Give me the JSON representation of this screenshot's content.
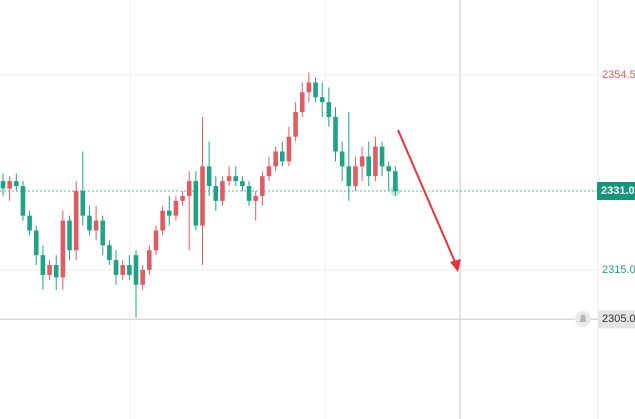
{
  "chart_data": {
    "type": "candlestick",
    "up_color": "#e15b64",
    "down_color": "#1fa385",
    "ylim": [
      2284.8,
      2369.7
    ],
    "yticks": [
      2354.5,
      {
        "value": 2315,
        "label": "2315.0"
      }
    ],
    "last_price": {
      "value": 2331,
      "label": "2331.0"
    },
    "crosshair": {
      "value": 2305,
      "label": "2305.0"
    },
    "grid": true,
    "series": {
      "open": [
        2333,
        2331.5,
        2333,
        2332,
        2326,
        2323,
        2318,
        2314,
        2316,
        2313.5,
        2325,
        2319,
        2331,
        2326,
        2323,
        2325,
        2320,
        2317,
        2314,
        2316,
        2318,
        2312,
        2315,
        2319,
        2323,
        2327,
        2326,
        2329,
        2330,
        2333,
        2324,
        2336,
        2332,
        2329,
        2333,
        2334,
        2333,
        2332,
        2329,
        2330,
        2334,
        2336,
        2339,
        2337,
        2342,
        2347,
        2351,
        2353,
        2350,
        2349,
        2346,
        2339,
        2336,
        2332,
        2336,
        2338,
        2334,
        2340,
        2336,
        2335
      ],
      "high": [
        2334.5,
        2334,
        2334.5,
        2333,
        2327,
        2324,
        2320,
        2317,
        2318,
        2327,
        2326,
        2333,
        2339,
        2328,
        2328,
        2326,
        2321,
        2319,
        2317,
        2318,
        2319,
        2316,
        2320,
        2324,
        2328,
        2330,
        2330,
        2331,
        2335,
        2335,
        2346,
        2341,
        2334,
        2334,
        2336,
        2336,
        2334,
        2333,
        2331,
        2335,
        2338,
        2340,
        2341,
        2344,
        2349,
        2353,
        2355,
        2354,
        2353,
        2352,
        2348,
        2341,
        2347,
        2338,
        2340,
        2341,
        2342,
        2341,
        2337,
        2336
      ],
      "low": [
        2330,
        2329,
        2331,
        2325,
        2322,
        2316,
        2311,
        2313,
        2311,
        2311,
        2317,
        2317,
        2324,
        2322,
        2321,
        2318,
        2316,
        2312,
        2313,
        2313,
        2305.3,
        2311,
        2314,
        2318,
        2322,
        2324,
        2325,
        2328,
        2319,
        2323,
        2316,
        2330,
        2327,
        2328,
        2332,
        2332,
        2331,
        2328,
        2325,
        2328,
        2333,
        2335,
        2336,
        2336,
        2341,
        2346,
        2349,
        2349,
        2346,
        2344,
        2337,
        2333,
        2329,
        2331,
        2333,
        2332,
        2333,
        2334,
        2331,
        2330
      ],
      "close": [
        2331.5,
        2333,
        2332,
        2326,
        2323,
        2318,
        2314,
        2316,
        2313.5,
        2325,
        2319,
        2331,
        2326,
        2323,
        2325,
        2320,
        2317,
        2314,
        2316,
        2314,
        2312,
        2315,
        2319,
        2323,
        2327,
        2326,
        2329,
        2330,
        2333,
        2324,
        2336,
        2332,
        2329,
        2333,
        2334,
        2333,
        2332,
        2329,
        2330,
        2334,
        2336,
        2339,
        2337,
        2342,
        2347,
        2351,
        2353,
        2350,
        2349,
        2346,
        2339,
        2336,
        2332,
        2336,
        2338,
        2334,
        2340,
        2336,
        2335,
        2331
      ]
    }
  }
}
